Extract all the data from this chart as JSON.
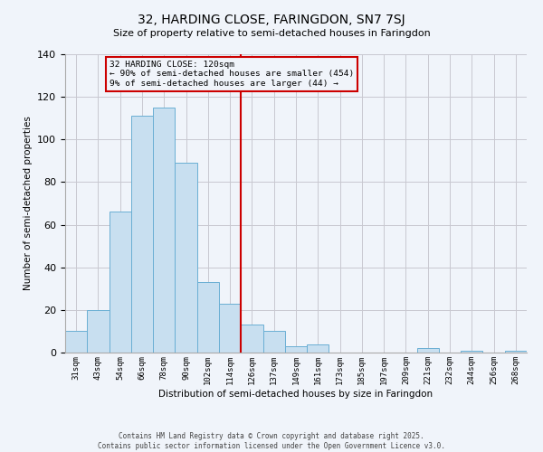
{
  "title": "32, HARDING CLOSE, FARINGDON, SN7 7SJ",
  "subtitle": "Size of property relative to semi-detached houses in Faringdon",
  "xlabel": "Distribution of semi-detached houses by size in Faringdon",
  "ylabel": "Number of semi-detached properties",
  "bin_labels": [
    "31sqm",
    "43sqm",
    "54sqm",
    "66sqm",
    "78sqm",
    "90sqm",
    "102sqm",
    "114sqm",
    "126sqm",
    "137sqm",
    "149sqm",
    "161sqm",
    "173sqm",
    "185sqm",
    "197sqm",
    "209sqm",
    "221sqm",
    "232sqm",
    "244sqm",
    "256sqm",
    "268sqm"
  ],
  "bar_heights": [
    10,
    20,
    66,
    111,
    115,
    89,
    33,
    23,
    13,
    10,
    3,
    4,
    0,
    0,
    0,
    0,
    2,
    0,
    1,
    0,
    1
  ],
  "bar_color": "#c8dff0",
  "bar_edge_color": "#6aafd4",
  "vline_color": "#cc0000",
  "vline_index": 8,
  "ylim": [
    0,
    140
  ],
  "yticks": [
    0,
    20,
    40,
    60,
    80,
    100,
    120,
    140
  ],
  "annotation_title": "32 HARDING CLOSE: 120sqm",
  "annotation_line1": "← 90% of semi-detached houses are smaller (454)",
  "annotation_line2": "9% of semi-detached houses are larger (44) →",
  "footer1": "Contains HM Land Registry data © Crown copyright and database right 2025.",
  "footer2": "Contains public sector information licensed under the Open Government Licence v3.0.",
  "background_color": "#f0f4fa",
  "grid_color": "#c8c8d0"
}
